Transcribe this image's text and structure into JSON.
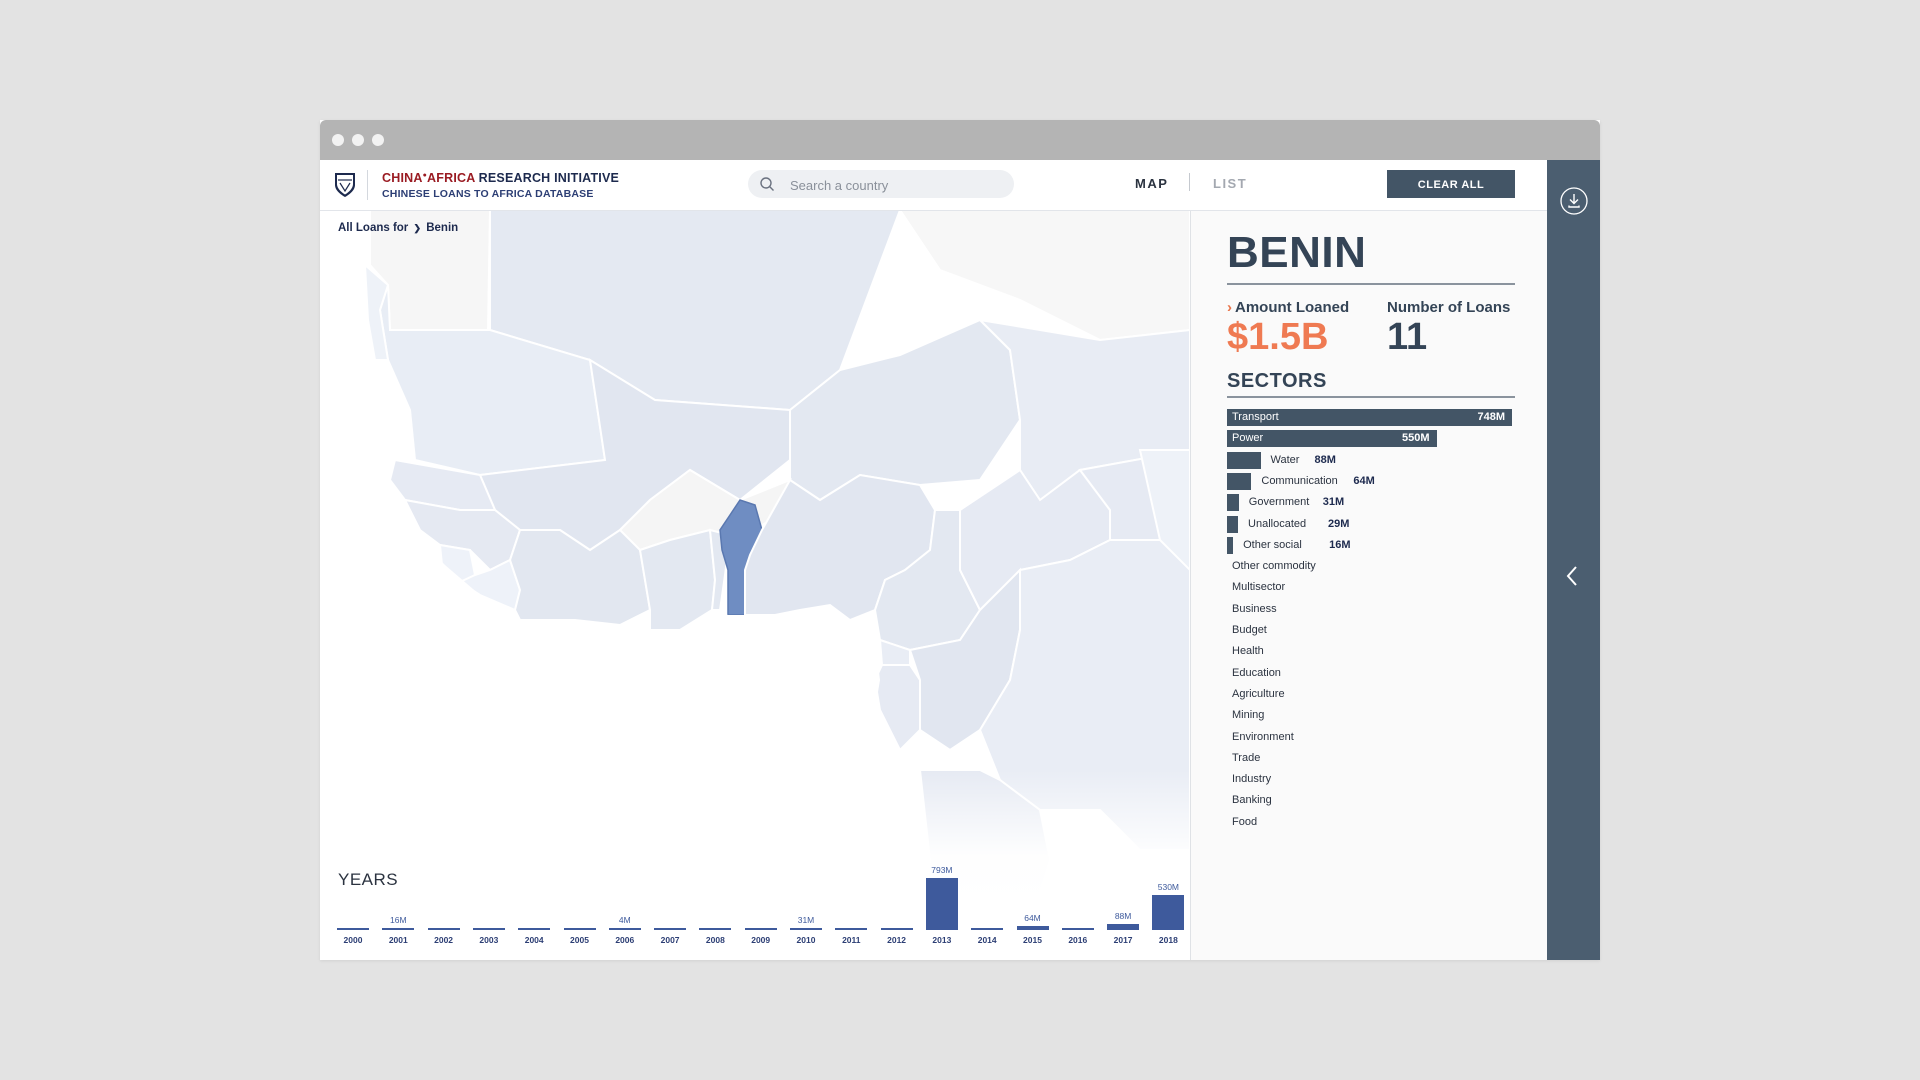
{
  "header": {
    "brand_part1": "CHINA",
    "brand_part2": "AFRICA",
    "brand_part3": " RESEARCH INITIATIVE",
    "subtitle": "CHINESE LOANS TO AFRICA DATABASE",
    "logo_icon": "sais-shield-icon",
    "search": {
      "placeholder": "Search a country",
      "value": "",
      "icon": "search-icon"
    },
    "nav": {
      "map_label": "MAP",
      "list_label": "LIST",
      "active": "MAP"
    },
    "clear_label": "CLEAR ALL"
  },
  "map": {
    "breadcrumb": {
      "prefix": "All Loans for",
      "separator": "❯",
      "country": "Benin"
    },
    "highlight_country": "Benin",
    "highlight_color": "#6f8dc2"
  },
  "years": {
    "title": "YEARS",
    "items": [
      {
        "year": "2000",
        "value_label": "",
        "value_m": 0
      },
      {
        "year": "2001",
        "value_label": "16M",
        "value_m": 16
      },
      {
        "year": "2002",
        "value_label": "",
        "value_m": 0
      },
      {
        "year": "2003",
        "value_label": "",
        "value_m": 0
      },
      {
        "year": "2004",
        "value_label": "",
        "value_m": 0
      },
      {
        "year": "2005",
        "value_label": "",
        "value_m": 0
      },
      {
        "year": "2006",
        "value_label": "4M",
        "value_m": 4
      },
      {
        "year": "2007",
        "value_label": "",
        "value_m": 0
      },
      {
        "year": "2008",
        "value_label": "",
        "value_m": 0
      },
      {
        "year": "2009",
        "value_label": "",
        "value_m": 0
      },
      {
        "year": "2010",
        "value_label": "31M",
        "value_m": 31
      },
      {
        "year": "2011",
        "value_label": "",
        "value_m": 0
      },
      {
        "year": "2012",
        "value_label": "",
        "value_m": 0
      },
      {
        "year": "2013",
        "value_label": "793M",
        "value_m": 793
      },
      {
        "year": "2014",
        "value_label": "",
        "value_m": 0
      },
      {
        "year": "2015",
        "value_label": "64M",
        "value_m": 64
      },
      {
        "year": "2016",
        "value_label": "",
        "value_m": 0
      },
      {
        "year": "2017",
        "value_label": "88M",
        "value_m": 88
      },
      {
        "year": "2018",
        "value_label": "530M",
        "value_m": 530
      }
    ]
  },
  "panel": {
    "country": "BENIN",
    "amount_label": "Amount Loaned",
    "amount_chevron": "›",
    "amount_value": "$1.5B",
    "count_label": "Number of Loans",
    "count_value": "11",
    "sectors_title": "SECTORS",
    "sectors": [
      {
        "name": "Transport",
        "value_label": "748M",
        "value_m": 748
      },
      {
        "name": "Power",
        "value_label": "550M",
        "value_m": 550
      },
      {
        "name": "Water",
        "value_label": "88M",
        "value_m": 88
      },
      {
        "name": "Communication",
        "value_label": "64M",
        "value_m": 64
      },
      {
        "name": "Government",
        "value_label": "31M",
        "value_m": 31
      },
      {
        "name": "Unallocated",
        "value_label": "29M",
        "value_m": 29
      },
      {
        "name": "Other social",
        "value_label": "16M",
        "value_m": 16
      },
      {
        "name": "Other commodity",
        "value_label": "",
        "value_m": 0
      },
      {
        "name": "Multisector",
        "value_label": "",
        "value_m": 0
      },
      {
        "name": "Business",
        "value_label": "",
        "value_m": 0
      },
      {
        "name": "Budget",
        "value_label": "",
        "value_m": 0
      },
      {
        "name": "Health",
        "value_label": "",
        "value_m": 0
      },
      {
        "name": "Education",
        "value_label": "",
        "value_m": 0
      },
      {
        "name": "Agriculture",
        "value_label": "",
        "value_m": 0
      },
      {
        "name": "Mining",
        "value_label": "",
        "value_m": 0
      },
      {
        "name": "Environment",
        "value_label": "",
        "value_m": 0
      },
      {
        "name": "Trade",
        "value_label": "",
        "value_m": 0
      },
      {
        "name": "Industry",
        "value_label": "",
        "value_m": 0
      },
      {
        "name": "Banking",
        "value_label": "",
        "value_m": 0
      },
      {
        "name": "Food",
        "value_label": "",
        "value_m": 0
      }
    ]
  },
  "rail": {
    "download_icon": "download-icon",
    "collapse_icon": "chevron-left-icon"
  },
  "colors": {
    "accent_orange": "#ef7a52",
    "bar_slate": "#435566",
    "year_bar_blue": "#3e5a9c",
    "rail": "#4b5e70",
    "brand_red": "#9a1b22",
    "brand_navy": "#1d2a4e"
  }
}
